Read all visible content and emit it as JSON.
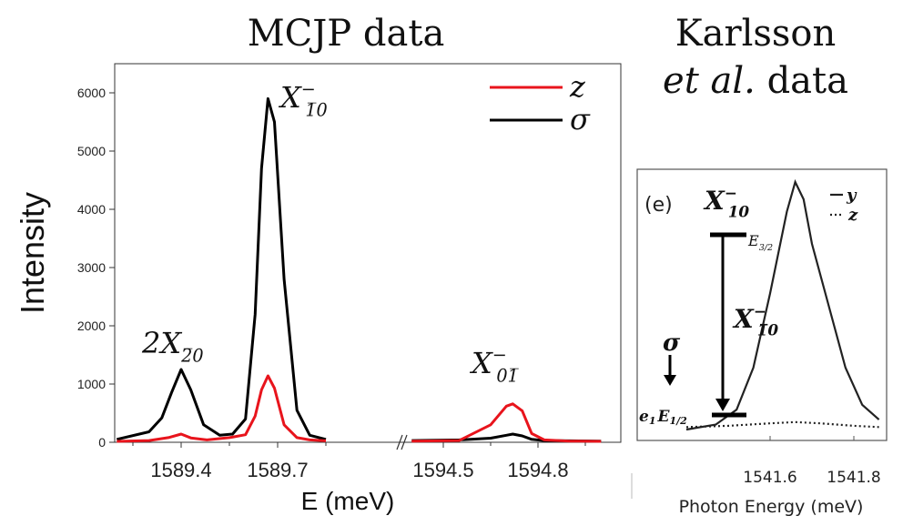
{
  "titles": {
    "main": "MCJP data",
    "karlsson_line1": "Karlsson",
    "karlsson_etal": "et al.",
    "karlsson_data": "data"
  },
  "chart_data": [
    {
      "type": "line",
      "ylabel": "Intensity",
      "xlabel": "E (meV)",
      "ylim": [
        0,
        6500
      ],
      "yticks": [
        0,
        1000,
        2000,
        3000,
        4000,
        5000,
        6000
      ],
      "xticks": [
        "1589.4",
        "1589.7",
        "1594.5",
        "1594.8"
      ],
      "axis_break": true,
      "legend_placement": "top-right",
      "series": [
        {
          "name": "z",
          "color": "#e8141c",
          "x": [
            1589.2,
            1589.3,
            1589.36,
            1589.4,
            1589.43,
            1589.48,
            1589.55,
            1589.6,
            1589.63,
            1589.65,
            1589.67,
            1589.69,
            1589.72,
            1589.76,
            1589.8,
            1589.85,
            1594.4,
            1594.55,
            1594.65,
            1594.7,
            1594.72,
            1594.75,
            1594.78,
            1594.82,
            1594.9,
            1595.0
          ],
          "y": [
            15,
            30,
            80,
            140,
            75,
            40,
            80,
            130,
            450,
            900,
            1140,
            930,
            300,
            80,
            40,
            25,
            20,
            30,
            300,
            620,
            660,
            540,
            150,
            40,
            20,
            15
          ]
        },
        {
          "name": "σ",
          "color": "#000000",
          "x": [
            1589.2,
            1589.3,
            1589.34,
            1589.37,
            1589.4,
            1589.43,
            1589.47,
            1589.52,
            1589.56,
            1589.6,
            1589.63,
            1589.65,
            1589.67,
            1589.69,
            1589.72,
            1589.76,
            1589.8,
            1589.85,
            1594.4,
            1594.55,
            1594.65,
            1594.7,
            1594.72,
            1594.75,
            1594.78,
            1594.82,
            1594.9,
            1595.0
          ],
          "y": [
            50,
            180,
            420,
            850,
            1250,
            900,
            300,
            120,
            140,
            400,
            2200,
            4700,
            5900,
            5500,
            2800,
            550,
            120,
            50,
            30,
            40,
            70,
            120,
            140,
            110,
            50,
            30,
            25,
            20
          ]
        }
      ],
      "annotations": [
        {
          "base": "2X",
          "sub": "2̅0",
          "at": [
            1589.37,
            1250
          ]
        },
        {
          "base": "X",
          "sup": "−",
          "sub": "1̅0",
          "at": [
            1589.68,
            5900
          ]
        },
        {
          "base": "X",
          "sup": "−",
          "sub": "01̅",
          "at": [
            1594.72,
            660
          ]
        }
      ]
    },
    {
      "type": "line",
      "xlabel": "Photon Energy (meV)",
      "xticks": [
        "1541.6",
        "1541.8"
      ],
      "panel_label": "(e)",
      "legend_placement": "top-right",
      "series": [
        {
          "name": "y",
          "style": "solid",
          "color": "#222222",
          "x": [
            1541.4,
            1541.47,
            1541.52,
            1541.56,
            1541.6,
            1541.64,
            1541.66,
            1541.68,
            1541.7,
            1541.74,
            1541.78,
            1541.82,
            1541.86
          ],
          "y": [
            0.0,
            0.02,
            0.08,
            0.25,
            0.55,
            0.88,
            1.0,
            0.93,
            0.75,
            0.5,
            0.25,
            0.1,
            0.04
          ]
        },
        {
          "name": "z",
          "style": "dotted",
          "color": "#222222",
          "x": [
            1541.4,
            1541.5,
            1541.6,
            1541.66,
            1541.72,
            1541.8,
            1541.86
          ],
          "y": [
            0.01,
            0.015,
            0.025,
            0.03,
            0.025,
            0.015,
            0.01
          ]
        }
      ],
      "level_diagram": {
        "top_state": {
          "base": "X",
          "sup": "−",
          "sub": "10"
        },
        "upper_level": {
          "base": "E",
          "sub": "3/2"
        },
        "lower_level": {
          "prefix": "e",
          "prefix_sub": "1",
          "base": "E",
          "sub": "1/2"
        },
        "transition": {
          "base": "X",
          "sup": "−",
          "sub": "1̅0"
        },
        "polarization": "σ"
      }
    }
  ]
}
